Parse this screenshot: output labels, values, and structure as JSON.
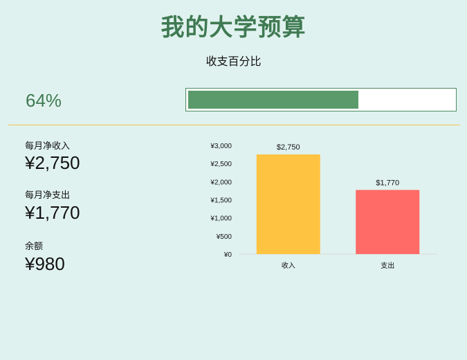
{
  "header": {
    "title": "我的大学预算",
    "subtitle": "收支百分比"
  },
  "progress": {
    "label": "64%",
    "fraction": 0.64,
    "fill_color": "#5b9b6b"
  },
  "stats": {
    "income_label": "每月净收入",
    "income_value": "¥2,750",
    "expense_label": "每月净支出",
    "expense_value": "¥1,770",
    "balance_label": "余额",
    "balance_value": "¥980"
  },
  "chart_data": {
    "type": "bar",
    "categories": [
      "收入",
      "支出"
    ],
    "values": [
      2750,
      1770
    ],
    "data_labels": [
      "$2,750",
      "$1,770"
    ],
    "colors": [
      "#ffc342",
      "#ff6b66"
    ],
    "ylim": [
      0,
      3000
    ],
    "yticks": [
      0,
      500,
      1000,
      1500,
      2000,
      2500,
      3000
    ],
    "ytick_labels": [
      "¥0",
      "¥500",
      "¥1,000",
      "¥1,500",
      "¥2,000",
      "¥2,500",
      "¥3,000"
    ],
    "title": "",
    "xlabel": "",
    "ylabel": "",
    "grid": false
  }
}
